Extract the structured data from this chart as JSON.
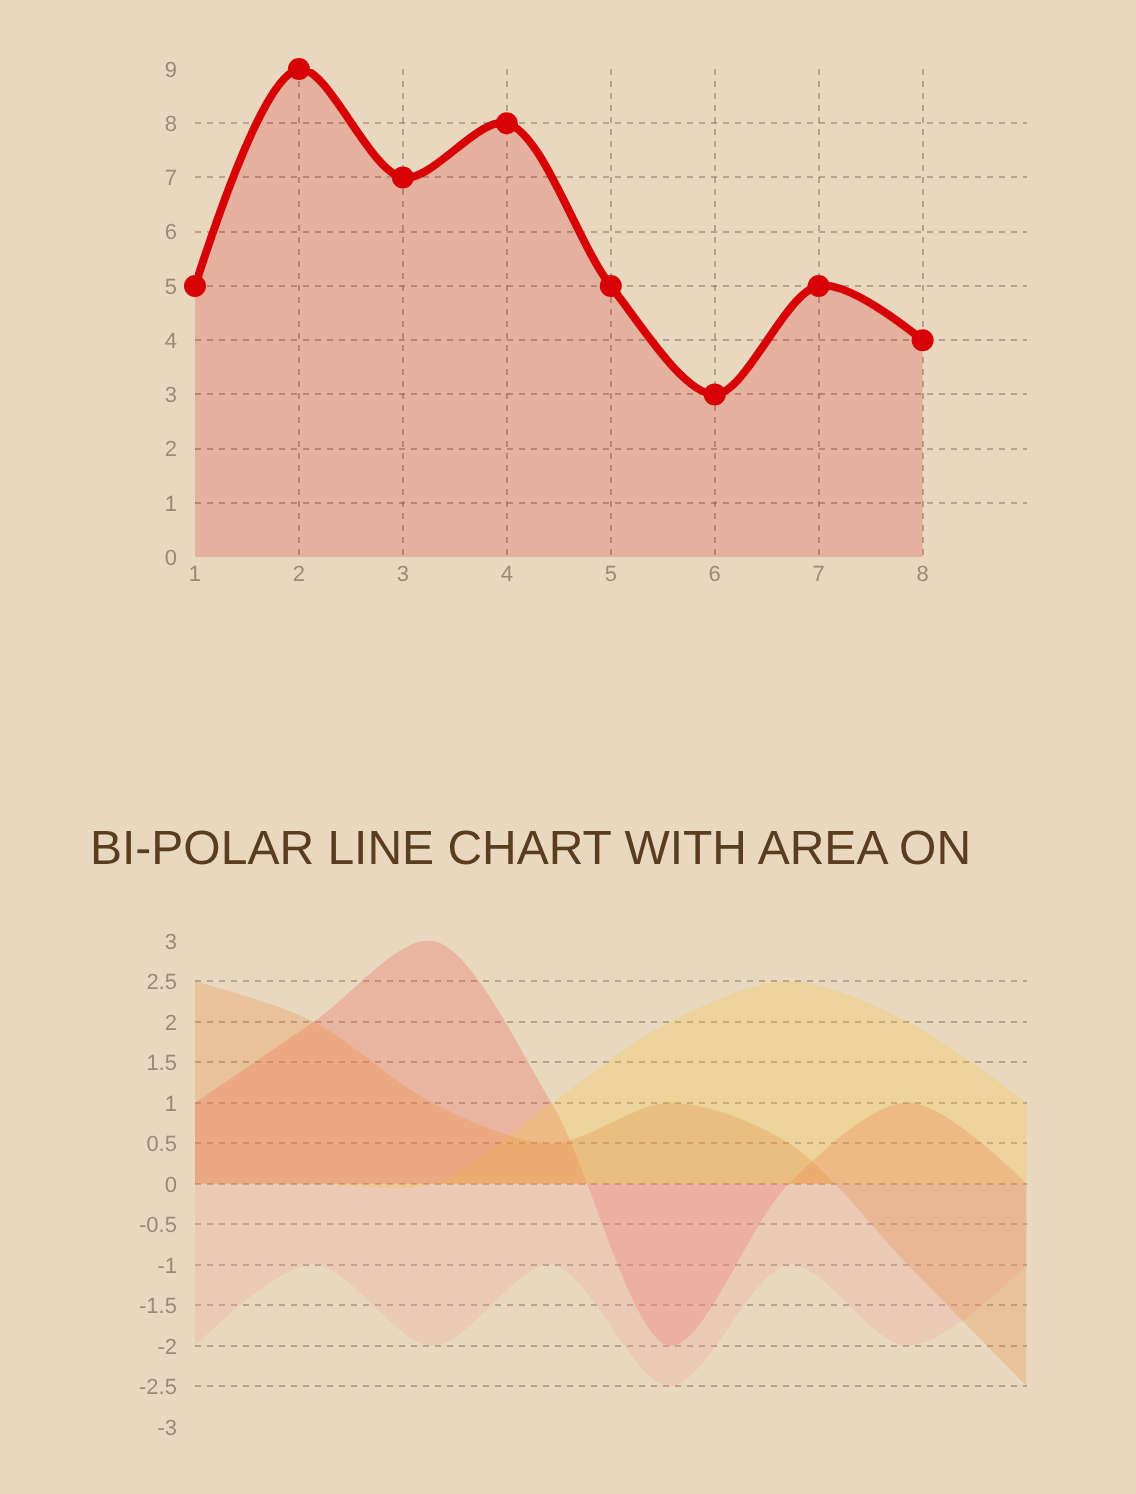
{
  "chart_data": [
    {
      "type": "area",
      "x": [
        1,
        2,
        3,
        4,
        5,
        6,
        7,
        8
      ],
      "xlim": [
        1,
        9
      ],
      "xticks": [
        1,
        2,
        3,
        4,
        5,
        6,
        7,
        8
      ],
      "ylim": [
        0,
        9
      ],
      "yticks": [
        0,
        1,
        2,
        3,
        4,
        5,
        6,
        7,
        8,
        9
      ],
      "grid": true,
      "marker": "circle",
      "series": [
        {
          "color": "#d70206",
          "values": [
            5,
            9,
            7,
            8,
            5,
            3,
            5,
            4
          ]
        }
      ]
    },
    {
      "type": "area",
      "title": "BI-POLAR LINE CHART WITH AREA ON",
      "categories": [
        null,
        null,
        null,
        null,
        null,
        null,
        null,
        null
      ],
      "ylim": [
        -3,
        3
      ],
      "yticks": [
        -3,
        -2.5,
        -2,
        -1.5,
        -1,
        -0.5,
        0,
        0.5,
        1,
        1.5,
        2,
        2.5,
        3
      ],
      "grid": "y",
      "marker": "none",
      "series": [
        {
          "color": "#f05b4f",
          "values": [
            1,
            2,
            3,
            1,
            -2,
            0,
            1,
            0
          ]
        },
        {
          "color": "#f4a3a0",
          "values": [
            -2,
            -1,
            -2,
            -1,
            -2.5,
            -1,
            -2,
            -1
          ]
        },
        {
          "color": "#f4c63d",
          "values": [
            0,
            0,
            0,
            1,
            2,
            2.5,
            2,
            1
          ]
        },
        {
          "color": "#e8873a",
          "values": [
            2.5,
            2,
            1,
            0.5,
            1,
            0.5,
            -1,
            -2.5
          ]
        }
      ]
    }
  ]
}
